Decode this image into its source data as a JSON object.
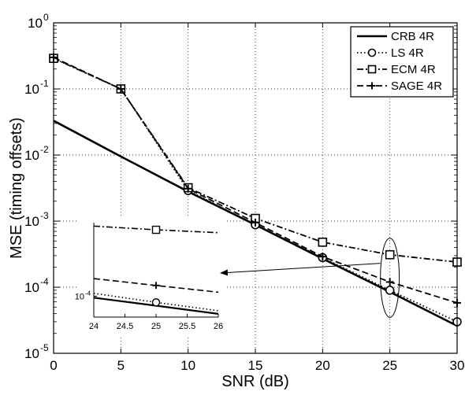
{
  "chart_data": [
    {
      "type": "line",
      "title": "",
      "xlabel": "SNR (dB)",
      "ylabel": "MSE (timing offsets)",
      "y_scale": "log",
      "xlim": [
        0,
        30
      ],
      "ylim": [
        1e-05,
        1
      ],
      "x_ticks": [
        "0",
        "5",
        "10",
        "15",
        "20",
        "25",
        "30"
      ],
      "y_tick_labels": [
        {
          "base": "10",
          "exp": "-5",
          "value": 1e-05
        },
        {
          "base": "10",
          "exp": "-4",
          "value": 0.0001
        },
        {
          "base": "10",
          "exp": "-3",
          "value": 0.001
        },
        {
          "base": "10",
          "exp": "-2",
          "value": 0.01
        },
        {
          "base": "10",
          "exp": "-1",
          "value": 0.1
        },
        {
          "base": "10",
          "exp": "0",
          "value": 1
        }
      ],
      "grid": true,
      "legend_position": "top-right",
      "series": [
        {
          "name": "CRB 4R",
          "line_style": "solid",
          "marker": "none",
          "color": "#000000",
          "x": [
            0,
            5,
            10,
            15,
            20,
            25,
            30
          ],
          "y": [
            0.033,
            0.0095,
            0.0028,
            0.00088,
            0.00027,
            8.5e-05,
            2.6e-05
          ]
        },
        {
          "name": "LS 4R",
          "line_style": "dotted",
          "marker": "circle",
          "color": "#000000",
          "x": [
            0,
            5,
            10,
            15,
            20,
            25,
            30
          ],
          "y": [
            0.29,
            0.1,
            0.0029,
            0.00088,
            0.00028,
            9e-05,
            3e-05
          ]
        },
        {
          "name": "ECM 4R",
          "line_style": "dashdot",
          "marker": "square",
          "color": "#000000",
          "x": [
            0,
            5,
            10,
            15,
            20,
            25,
            30
          ],
          "y": [
            0.29,
            0.1,
            0.0032,
            0.0011,
            0.00048,
            0.00031,
            0.00024
          ]
        },
        {
          "name": "SAGE 4R",
          "line_style": "dashed",
          "marker": "plus",
          "color": "#000000",
          "x": [
            0,
            5,
            10,
            15,
            20,
            25,
            30
          ],
          "y": [
            0.3,
            0.1,
            0.0031,
            0.00095,
            0.00029,
            0.00012,
            5.8e-05
          ]
        }
      ]
    },
    {
      "type": "line",
      "title": "",
      "y_scale": "log",
      "xlim": [
        24,
        26
      ],
      "ylim": [
        7e-05,
        0.00035
      ],
      "x_ticks": [
        "24",
        "24.5",
        "25",
        "25.5",
        "26"
      ],
      "y_tick_labels": [
        {
          "base": "10",
          "exp": "-4",
          "value": 0.0001
        }
      ],
      "grid": false,
      "series": [
        {
          "name": "CRB 4R",
          "line_style": "solid",
          "marker": "none",
          "x": [
            24,
            25,
            26
          ],
          "y": [
            9.75e-05,
            8.5e-05,
            7.4e-05
          ]
        },
        {
          "name": "LS 4R",
          "line_style": "dotted",
          "marker": "circle",
          "x": [
            24,
            25,
            26
          ],
          "y": [
            0.000105,
            9e-05,
            7.8e-05
          ]
        },
        {
          "name": "ECM 4R",
          "line_style": "dashdot",
          "marker": "square",
          "x": [
            24,
            25,
            26
          ],
          "y": [
            0.00033,
            0.00031,
            0.000295
          ]
        },
        {
          "name": "SAGE 4R",
          "line_style": "dashed",
          "marker": "plus",
          "x": [
            24,
            25,
            26
          ],
          "y": [
            0.000135,
            0.00012,
            0.000107
          ]
        }
      ]
    }
  ]
}
